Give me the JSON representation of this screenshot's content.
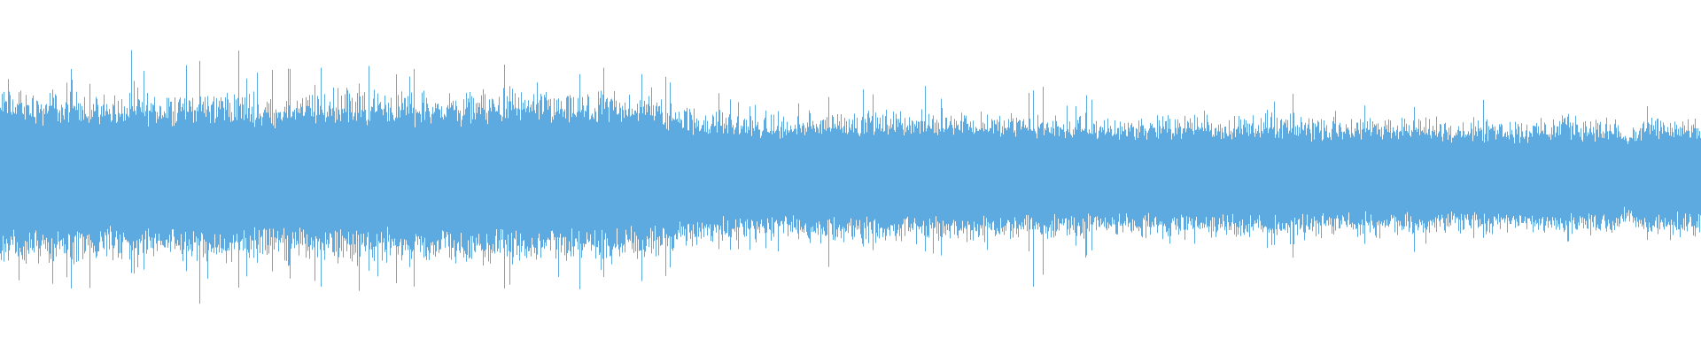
{
  "chart_data": {
    "type": "area",
    "description_kind": "audio-waveform",
    "color": "#5DAAE1",
    "background": "#FFFFFF",
    "ylim": [
      -1,
      1
    ],
    "grid": false,
    "legend": "none",
    "envelope_body": [
      0.4,
      0.38,
      0.39,
      0.37,
      0.38,
      0.39,
      0.37,
      0.38,
      0.39,
      0.38,
      0.38,
      0.39,
      0.38,
      0.37,
      0.38,
      0.37,
      0.3,
      0.29,
      0.27,
      0.3,
      0.3,
      0.29,
      0.3,
      0.28,
      0.28,
      0.27,
      0.27,
      0.28,
      0.27,
      0.28,
      0.27,
      0.26,
      0.27,
      0.26,
      0.26,
      0.26,
      0.27,
      0.26,
      0.26,
      0.26
    ],
    "envelope_peak": [
      0.78,
      0.7,
      0.62,
      0.65,
      0.62,
      0.68,
      0.64,
      0.62,
      0.72,
      0.66,
      0.66,
      0.62,
      0.62,
      0.66,
      0.6,
      0.62,
      0.45,
      0.5,
      0.45,
      0.5,
      0.48,
      0.5,
      0.45,
      0.42,
      0.7,
      0.48,
      0.45,
      0.45,
      0.45,
      0.42,
      0.42,
      0.45,
      0.4,
      0.4,
      0.4,
      0.46,
      0.44,
      0.38,
      0.35,
      0.4
    ],
    "dips": [
      {
        "time_fraction": 0.957,
        "amplitude": 0.2
      }
    ]
  }
}
